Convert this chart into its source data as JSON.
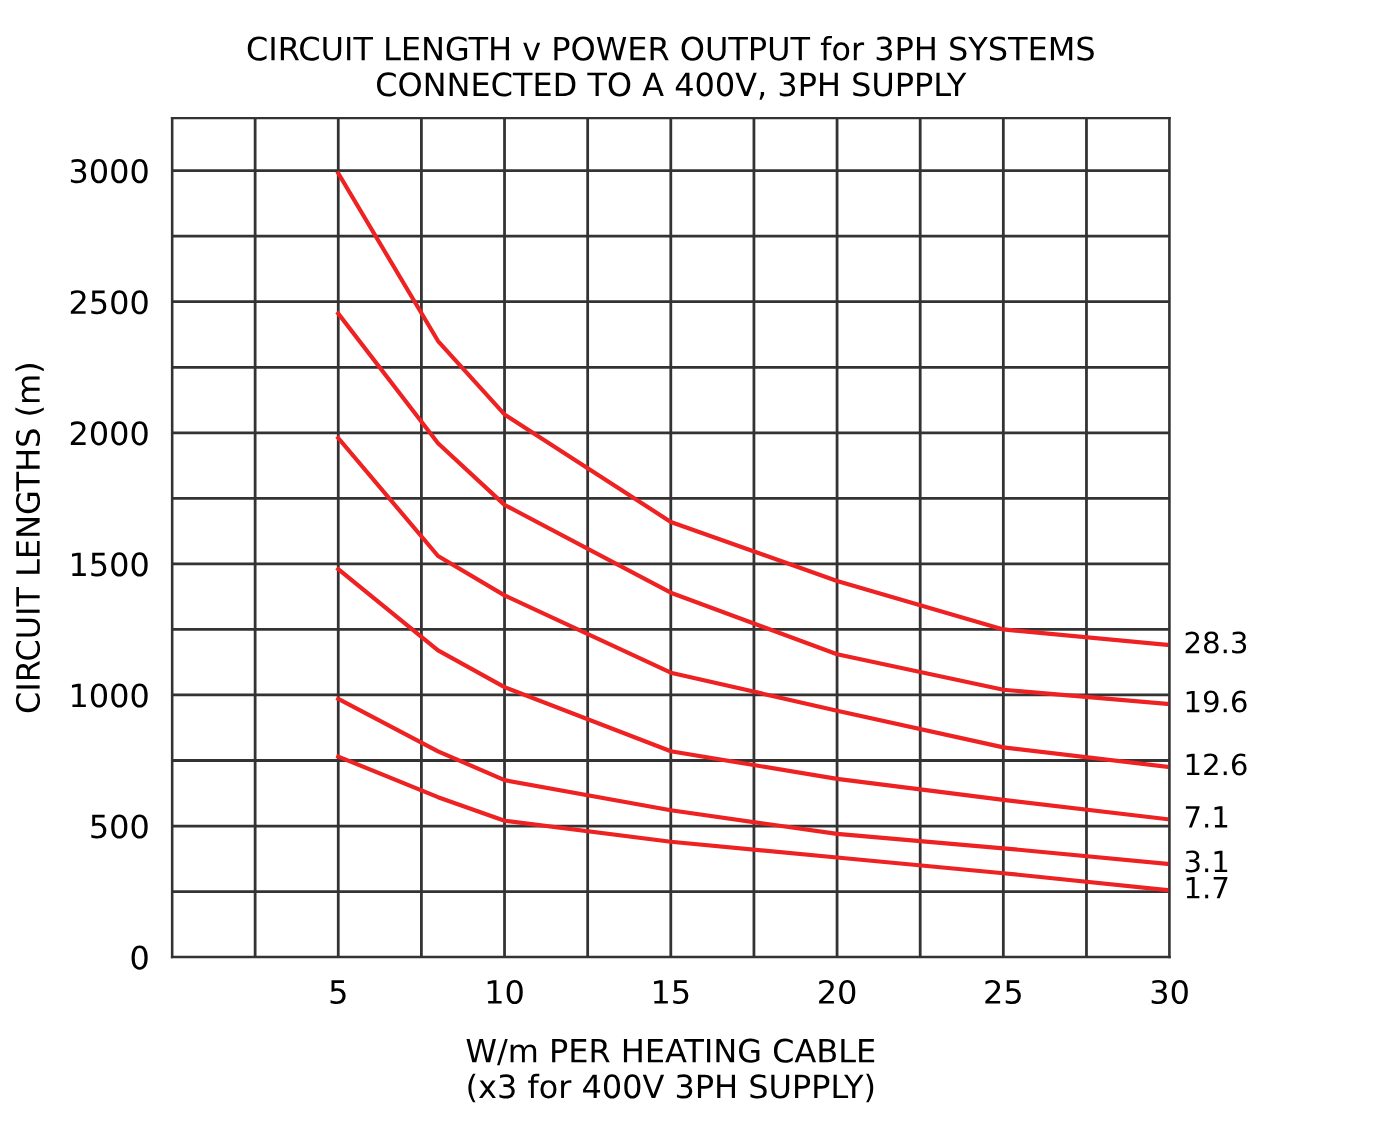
{
  "chart_data": {
    "type": "line",
    "title": "CIRCUIT LENGTH v POWER OUTPUT for 3PH SYSTEMS\nCONNECTED TO A 400V, 3PH SUPPLY",
    "xlabel": "W/m PER HEATING CABLE\n(x3 for 400V 3PH SUPPLY)",
    "ylabel": "CIRCUIT LENGTHS (m)",
    "x": [
      5,
      8,
      10,
      15,
      20,
      25,
      30
    ],
    "series": [
      {
        "name": "28.3",
        "color": "#ee2222",
        "values": [
          2990,
          2350,
          2070,
          1660,
          1435,
          1250,
          1190
        ]
      },
      {
        "name": "19.6",
        "color": "#ee2222",
        "values": [
          2455,
          1960,
          1725,
          1390,
          1155,
          1020,
          965
        ]
      },
      {
        "name": "12.6",
        "color": "#ee2222",
        "values": [
          1980,
          1530,
          1380,
          1085,
          940,
          800,
          725
        ]
      },
      {
        "name": "7.1",
        "color": "#ee2222",
        "values": [
          1480,
          1170,
          1030,
          785,
          680,
          600,
          525
        ]
      },
      {
        "name": "3.1",
        "color": "#ee2222",
        "values": [
          985,
          785,
          675,
          560,
          470,
          415,
          355
        ]
      },
      {
        "name": "1.7",
        "color": "#ee2222",
        "values": [
          765,
          610,
          520,
          440,
          380,
          320,
          255
        ]
      }
    ],
    "xlim": [
      0,
      30
    ],
    "ylim": [
      0,
      3200
    ],
    "xticks": [
      {
        "value": 0,
        "label": null
      },
      {
        "value": 2.5,
        "label": null
      },
      5,
      {
        "value": 7.5,
        "label": null
      },
      10,
      {
        "value": 12.5,
        "label": null
      },
      15,
      {
        "value": 17.5,
        "label": null
      },
      20,
      {
        "value": 22.5,
        "label": null
      },
      25,
      {
        "value": 27.5,
        "label": null
      },
      30
    ],
    "yticks": [
      0,
      {
        "value": 250,
        "label": null
      },
      500,
      {
        "value": 750,
        "label": null
      },
      1000,
      {
        "value": 1250,
        "label": null
      },
      1500,
      {
        "value": 1750,
        "label": null
      },
      2000,
      {
        "value": 2250,
        "label": null
      },
      2500,
      {
        "value": 2750,
        "label": null
      },
      3000
    ],
    "grid": true,
    "legend": false,
    "marker": "none",
    "line_style": "solid"
  }
}
